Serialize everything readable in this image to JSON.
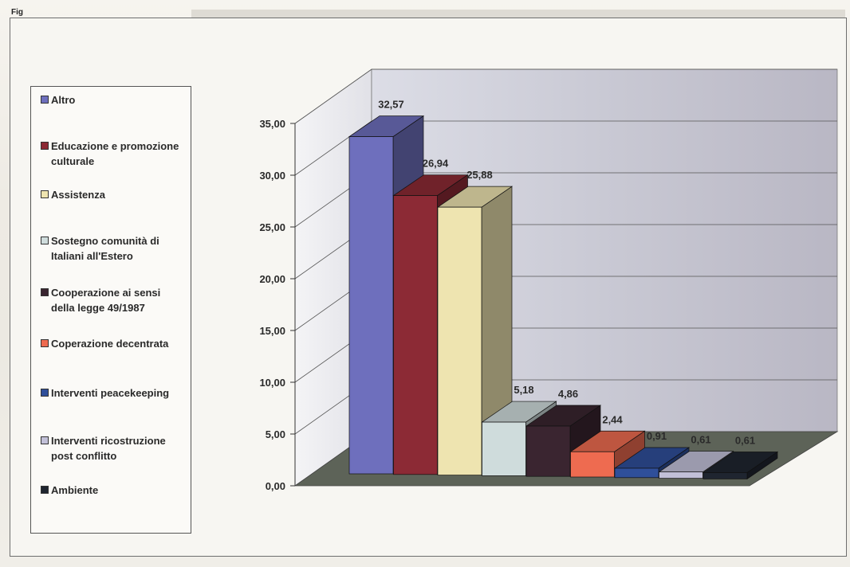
{
  "figure": {
    "label": "Fig"
  },
  "legend": {
    "items": [
      {
        "label": "Altro",
        "color": "#6e6fbd"
      },
      {
        "label": "Educazione e promozione culturale",
        "color": "#8c2a35"
      },
      {
        "label": "Assistenza",
        "color": "#eee4b0"
      },
      {
        "label": "Sostegno comunità di Italiani all'Estero",
        "color": "#cfdcdc"
      },
      {
        "label": "Cooperazione ai sensi della legge 49/1987",
        "color": "#3a2530"
      },
      {
        "label": "Coperazione decentrata",
        "color": "#ee6b50"
      },
      {
        "label": "Interventi peacekeeping",
        "color": "#2f4f9a"
      },
      {
        "label": "Interventi ricostruzione post conflitto",
        "color": "#c2c0d8"
      },
      {
        "label": "Ambiente",
        "color": "#1f2530"
      }
    ]
  },
  "chart_data": {
    "type": "bar",
    "style": "3d-stepped-depth",
    "categories": [
      "Altro",
      "Educazione e promozione culturale",
      "Assistenza",
      "Sostegno comunità di Italiani all'Estero",
      "Cooperazione ai sensi della legge 49/1987",
      "Coperazione decentrata",
      "Interventi peacekeeping",
      "Interventi ricostruzione post conflitto",
      "Ambiente"
    ],
    "values": [
      32.57,
      26.94,
      25.88,
      5.18,
      4.86,
      2.44,
      0.91,
      0.61,
      0.61
    ],
    "value_labels": [
      "32,57",
      "26,94",
      "25,88",
      "5,18",
      "4,86",
      "2,44",
      "0,91",
      "0,61",
      "0,61"
    ],
    "title": "",
    "xlabel": "",
    "ylabel": "",
    "ylim": [
      0,
      35
    ],
    "y_ticks": [
      "0,00",
      "5,00",
      "10,00",
      "15,00",
      "20,00",
      "25,00",
      "30,00",
      "35,00"
    ],
    "grid": true,
    "legend_position": "left"
  }
}
